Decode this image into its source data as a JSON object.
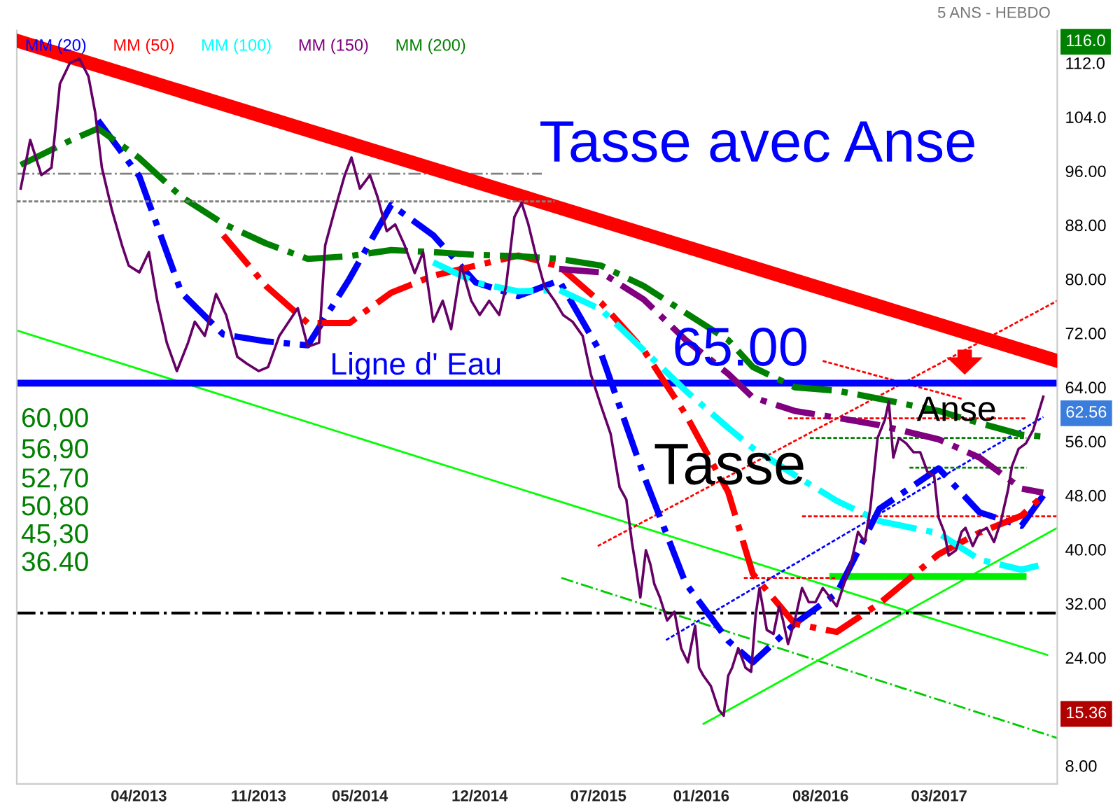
{
  "chart_data": {
    "type": "line",
    "subtitle": "5 ANS - HEBDO",
    "xlim": [
      "2012-08-26",
      "2017-09-28"
    ],
    "ylim": [
      5.3,
      116.8
    ],
    "xticks": [
      {
        "value": "2013-04-01",
        "label": "04/2013"
      },
      {
        "value": "2013-11-01",
        "label": "11/2013"
      },
      {
        "value": "2014-05-01",
        "label": "05/2014"
      },
      {
        "value": "2014-12-01",
        "label": "12/2014"
      },
      {
        "value": "2015-07-01",
        "label": "07/2015"
      },
      {
        "value": "2016-01-01",
        "label": "01/2016"
      },
      {
        "value": "2016-08-01",
        "label": "08/2016"
      },
      {
        "value": "2017-03-01",
        "label": "03/2017"
      }
    ],
    "yticks": [
      {
        "value": 112,
        "label": "112.0"
      },
      {
        "value": 104,
        "label": "104.0"
      },
      {
        "value": 96,
        "label": "96.00"
      },
      {
        "value": 88,
        "label": "88.00"
      },
      {
        "value": 80,
        "label": "80.00"
      },
      {
        "value": 72,
        "label": "72.00"
      },
      {
        "value": 64,
        "label": "64.00"
      },
      {
        "value": 56,
        "label": "56.00"
      },
      {
        "value": 48,
        "label": "48.00"
      },
      {
        "value": 40,
        "label": "40.00"
      },
      {
        "value": 32,
        "label": "32.00"
      },
      {
        "value": 24,
        "label": "24.00"
      },
      {
        "value": 8,
        "label": "8.00"
      }
    ],
    "grid": false,
    "legend": "top left",
    "ref_lines": [
      {
        "axis": "y",
        "value": 64.6,
        "color": "#0000ff",
        "line_style": "solid"
      },
      {
        "axis": "y",
        "value": 30.6,
        "color": "#000000",
        "line_style": "dashdot"
      }
    ],
    "series": [
      {
        "color": "#660066",
        "line_style": "solid",
        "x": [
          "2012-09-02",
          "2012-09-19",
          "2012-10-09",
          "2012-10-27",
          "2012-11-11",
          "2012-11-29",
          "2012-12-16",
          "2013-01-01",
          "2013-01-13",
          "2013-01-25",
          "2013-02-12",
          "2013-03-02",
          "2013-03-14",
          "2013-04-02",
          "2013-04-19",
          "2013-05-04",
          "2013-05-21",
          "2013-06-08",
          "2013-06-28",
          "2013-07-10",
          "2013-07-28",
          "2013-08-17",
          "2013-09-04",
          "2013-09-24",
          "2013-10-11",
          "2013-11-01",
          "2013-11-18",
          "2013-12-08",
          "2013-12-25",
          "2014-01-10",
          "2014-01-28",
          "2014-02-17",
          "2014-02-28",
          "2014-03-17",
          "2014-04-04",
          "2014-04-16",
          "2014-05-01",
          "2014-05-19",
          "2014-06-01",
          "2014-06-18",
          "2014-07-03",
          "2014-07-20",
          "2014-08-07",
          "2014-08-22",
          "2014-09-09",
          "2014-09-26",
          "2014-10-11",
          "2014-10-29",
          "2014-11-16",
          "2014-12-01",
          "2014-12-18",
          "2015-01-05",
          "2015-01-17",
          "2015-02-01",
          "2015-02-14",
          "2015-02-26",
          "2015-03-10",
          "2015-03-27",
          "2015-04-14",
          "2015-04-29",
          "2015-05-16",
          "2015-06-03",
          "2015-06-18",
          "2015-07-06",
          "2015-07-23",
          "2015-08-08",
          "2015-08-20",
          "2015-08-30",
          "2015-09-07",
          "2015-09-14",
          "2015-09-24",
          "2015-10-02",
          "2015-10-09",
          "2015-10-19",
          "2015-11-01",
          "2015-11-14",
          "2015-11-26",
          "2015-12-08",
          "2015-12-21",
          "2015-12-28",
          "2016-01-05",
          "2016-01-18",
          "2016-02-01",
          "2016-02-10",
          "2016-02-18",
          "2016-02-25",
          "2016-03-07",
          "2016-03-20",
          "2016-03-30",
          "2016-04-07",
          "2016-04-14",
          "2016-04-27",
          "2016-05-09",
          "2016-05-19",
          "2016-05-26",
          "2016-06-04",
          "2016-06-16",
          "2016-06-29",
          "2016-07-11",
          "2016-07-23",
          "2016-08-05",
          "2016-08-18",
          "2016-08-30",
          "2016-09-12",
          "2016-09-24",
          "2016-10-07",
          "2016-10-19",
          "2016-10-29",
          "2016-11-11",
          "2016-11-24",
          "2016-12-01",
          "2016-12-09",
          "2016-12-19",
          "2017-01-01",
          "2017-01-14",
          "2017-01-26",
          "2017-02-08",
          "2017-02-20",
          "2017-02-28",
          "2017-03-10",
          "2017-03-18",
          "2017-03-31",
          "2017-04-10",
          "2017-04-17",
          "2017-04-30",
          "2017-05-12",
          "2017-05-25",
          "2017-06-07",
          "2017-06-19",
          "2017-07-02",
          "2017-07-09",
          "2017-07-21",
          "2017-08-03",
          "2017-08-16",
          "2017-09-03"
        ],
        "values": [
          93.4,
          100.6,
          95.4,
          96.5,
          108.9,
          112,
          112.6,
          110,
          104.7,
          96.5,
          90.2,
          85,
          82,
          81,
          84,
          76.8,
          70.6,
          66.4,
          70.6,
          73.7,
          71.6,
          77.8,
          74.7,
          68.5,
          67.5,
          66.4,
          67,
          71.6,
          73.7,
          75.7,
          70,
          70.6,
          85,
          90.2,
          95.4,
          98,
          93.4,
          95.4,
          92.3,
          87.1,
          88.1,
          85,
          80.9,
          84,
          73.7,
          76.8,
          72.6,
          82,
          76.8,
          74.7,
          76.8,
          74.7,
          78.9,
          89.2,
          91.3,
          88.1,
          84,
          78.9,
          76.8,
          74.7,
          73.7,
          71.6,
          65.8,
          61.2,
          57.1,
          49.2,
          47.4,
          41.1,
          36.9,
          32.9,
          39.9,
          37.8,
          34.9,
          32.9,
          29.5,
          30.8,
          25.4,
          23.3,
          28.7,
          22.5,
          21.3,
          19.8,
          16.3,
          15.4,
          21.3,
          22.5,
          25.4,
          22.5,
          21.9,
          30.2,
          34.3,
          28.1,
          27.5,
          31.6,
          29.5,
          26,
          29.5,
          34.3,
          32.2,
          32.2,
          34.3,
          32.9,
          31.6,
          34.9,
          37.8,
          42.6,
          41.1,
          46.1,
          56.5,
          59.2,
          61.9,
          53.6,
          56.5,
          55.7,
          54.4,
          54.4,
          51.5,
          50.9,
          44.7,
          42.6,
          39.1,
          39.9,
          42.6,
          43.2,
          40.5,
          42.6,
          43.2,
          41.1,
          44.1,
          48.8,
          52.3,
          54.9,
          55.7,
          57.7,
          62.6
        ]
      },
      {
        "name": "MM (20)",
        "color": "#0000ff",
        "line_style": "dashdot",
        "x": [
          "2013-01-18",
          "2013-04-02",
          "2013-06-16",
          "2013-08-30",
          "2013-11-14",
          "2014-01-28",
          "2014-04-12",
          "2014-06-26",
          "2014-09-09",
          "2014-11-24",
          "2015-02-08",
          "2015-04-22",
          "2015-07-06",
          "2015-09-20",
          "2015-12-04",
          "2016-02-18",
          "2016-04-02",
          "2016-06-16",
          "2016-08-30",
          "2016-11-14",
          "2017-02-28",
          "2017-05-12",
          "2017-07-26",
          "2017-09-03"
        ],
        "values": [
          103.5,
          95.2,
          78,
          71.8,
          70.8,
          70.2,
          80,
          91,
          86.5,
          79.5,
          77.5,
          79.8,
          69,
          51,
          35,
          26.5,
          23.3,
          29,
          33.5,
          46,
          52,
          45.5,
          43.5,
          48
        ]
      },
      {
        "name": "MM (50)",
        "color": "#ff0000",
        "line_style": "dashdot",
        "x": [
          "2013-08-30",
          "2013-11-14",
          "2014-01-28",
          "2014-04-12",
          "2014-06-26",
          "2014-09-09",
          "2014-11-24",
          "2015-02-08",
          "2015-04-22",
          "2015-07-06",
          "2015-09-20",
          "2015-12-04",
          "2016-02-18",
          "2016-04-02",
          "2016-06-16",
          "2016-08-30",
          "2016-11-14",
          "2017-02-28",
          "2017-05-12",
          "2017-07-26",
          "2017-09-03"
        ],
        "values": [
          86.5,
          79,
          73.5,
          73.5,
          78,
          80.5,
          82,
          83.5,
          81.9,
          76.5,
          69.5,
          60,
          48.5,
          36.4,
          29,
          27.8,
          32,
          39.3,
          42.5,
          45,
          48
        ]
      },
      {
        "name": "MM (100)",
        "color": "#00ffff",
        "line_style": "dashdot",
        "x": [
          "2014-09-09",
          "2014-11-24",
          "2015-02-08",
          "2015-04-22",
          "2015-07-06",
          "2015-09-20",
          "2015-12-04",
          "2016-02-18",
          "2016-04-02",
          "2016-06-16",
          "2016-08-30",
          "2016-11-14",
          "2017-02-28",
          "2017-05-12",
          "2017-07-26",
          "2017-09-03"
        ],
        "values": [
          82.5,
          79.5,
          78.2,
          78.4,
          75.5,
          69.5,
          63.5,
          58,
          55,
          51,
          47.2,
          44.2,
          42.4,
          38.5,
          37,
          37.8
        ]
      },
      {
        "name": "MM (150)",
        "color": "#800080",
        "line_style": "dashdot",
        "x": [
          "2015-04-22",
          "2015-07-06",
          "2015-09-20",
          "2015-12-04",
          "2016-02-18",
          "2016-04-02",
          "2016-06-16",
          "2016-08-30",
          "2016-11-14",
          "2017-02-28",
          "2017-05-12",
          "2017-07-26",
          "2017-09-03"
        ],
        "values": [
          81.5,
          81,
          77,
          71,
          66,
          62.5,
          60.5,
          59.5,
          58.4,
          56.3,
          53.6,
          49,
          48.4
        ]
      },
      {
        "name": "MM (200)",
        "color": "#008000",
        "line_style": "dashdot",
        "x": [
          "2012-09-02",
          "2012-11-29",
          "2013-01-18",
          "2013-04-02",
          "2013-06-16",
          "2013-08-30",
          "2013-11-14",
          "2014-01-28",
          "2014-04-12",
          "2014-06-26",
          "2014-09-09",
          "2014-11-24",
          "2015-02-08",
          "2015-04-22",
          "2015-07-06",
          "2015-09-20",
          "2015-12-04",
          "2016-02-18",
          "2016-04-02",
          "2016-06-16",
          "2016-08-30",
          "2016-11-14",
          "2017-02-28",
          "2017-05-12",
          "2017-07-26",
          "2017-09-03"
        ],
        "values": [
          96.9,
          100.5,
          102.3,
          97.9,
          92.2,
          88.2,
          85.3,
          83,
          83.4,
          84.3,
          84,
          83.6,
          83.4,
          83,
          82,
          79,
          75,
          71,
          67,
          64,
          63.5,
          62.3,
          60.5,
          58.7,
          57,
          56.7
        ]
      },
      {
        "color": "#ff0000",
        "line_style": "solid",
        "x": [
          "2012-09-02",
          "2017-09-28"
        ],
        "values": [
          115.1,
          67.9
        ]
      },
      {
        "color": "#808080",
        "line_style": "dashdot",
        "x": [
          "2012-08-26",
          "2015-03-22"
        ],
        "values": [
          95.6,
          95.6
        ]
      },
      {
        "color": "#808080",
        "line_style": "dashed",
        "x": [
          "2012-08-26",
          "2015-04-14"
        ],
        "values": [
          91.5,
          91.5
        ]
      },
      {
        "color": "#00ff00",
        "line_style": "solid",
        "x": [
          "2012-08-26",
          "2017-09-10"
        ],
        "values": [
          72.4,
          24.4
        ]
      },
      {
        "color": "#00cc00",
        "line_style": "dashdot",
        "x": [
          "2015-04-26",
          "2017-09-28"
        ],
        "values": [
          35.8,
          12.1
        ]
      },
      {
        "color": "#00ff00",
        "line_style": "solid",
        "x": [
          "2016-01-05",
          "2017-09-28"
        ],
        "values": [
          14.2,
          43.2
        ]
      },
      {
        "color": "#00ee00",
        "line_style": "solid",
        "x": [
          "2016-08-23",
          "2017-07-29"
        ],
        "values": [
          36,
          36
        ]
      },
      {
        "color": "#0000ff",
        "line_style": "dashed",
        "x": [
          "2015-10-30",
          "2017-09-03"
        ],
        "values": [
          26.6,
          59.6
        ]
      },
      {
        "color": "#ff0000",
        "line_style": "dashed",
        "x": [
          "2015-06-30",
          "2017-09-28"
        ],
        "values": [
          40.5,
          76.8
        ]
      },
      {
        "color": "#ff0000",
        "line_style": "dashed",
        "x": [
          "2016-06-29",
          "2017-09-28"
        ],
        "values": [
          44.9,
          44.9
        ]
      },
      {
        "color": "#ff0000",
        "line_style": "dashed",
        "x": [
          "2016-03-17",
          "2016-08-30"
        ],
        "values": [
          35.8,
          35.8
        ]
      },
      {
        "color": "#ff0000",
        "line_style": "dashed",
        "x": [
          "2016-06-04",
          "2017-08-04"
        ],
        "values": [
          59.4,
          59.4
        ]
      },
      {
        "color": "#008000",
        "line_style": "dashed",
        "x": [
          "2016-07-13",
          "2017-08-04"
        ],
        "values": [
          56.5,
          56.5
        ]
      },
      {
        "color": "#008000",
        "line_style": "dashed",
        "x": [
          "2017-01-07",
          "2017-08-04"
        ],
        "values": [
          52.1,
          52.1
        ]
      },
      {
        "color": "#ff0000",
        "line_style": "dashed",
        "x": [
          "2016-08-05",
          "2017-04-10"
        ],
        "values": [
          67.9,
          62.3
        ]
      }
    ],
    "annotations": [
      "Tasse avec Anse",
      "Ligne d' Eau",
      "65.00",
      "Tasse",
      "Anse",
      "60,00",
      "56,90",
      "52,70",
      "50,80",
      "45,30",
      "36.40",
      "116.0",
      "62.56",
      "15.36"
    ]
  }
}
